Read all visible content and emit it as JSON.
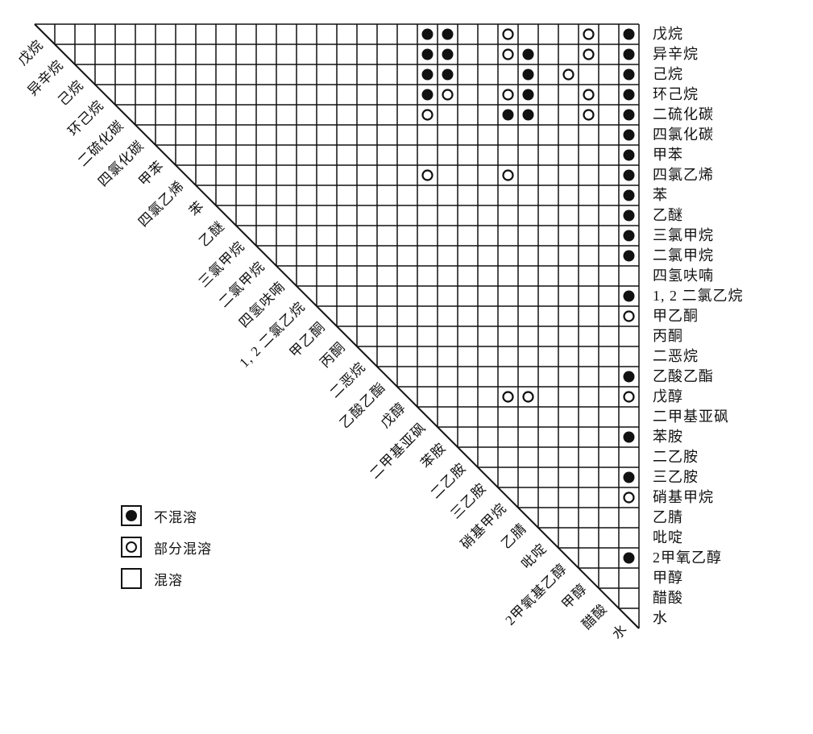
{
  "chart_data": {
    "type": "heatmap",
    "subtype": "triangular-miscibility-matrix",
    "solvents": [
      "戊烷",
      "异辛烷",
      "己烷",
      "环己烷",
      "二硫化碳",
      "四氯化碳",
      "甲苯",
      "四氯乙烯",
      "苯",
      "乙醚",
      "三氯甲烷",
      "二氯甲烷",
      "四氢呋喃",
      "1, 2 二氯乙烷",
      "甲乙酮",
      "丙酮",
      "二恶烷",
      "乙酸乙酯",
      "戊醇",
      "二甲基亚砜",
      "苯胺",
      "二乙胺",
      "三乙胺",
      "硝基甲烷",
      "乙腈",
      "吡啶",
      "2甲氧乙醇",
      "甲醇",
      "醋酸",
      "水"
    ],
    "column_labels": [
      "戊烷",
      "异辛烷",
      "己烷",
      "环己烷",
      "二硫化碳",
      "四氯化碳",
      "甲苯",
      "四氯乙烯",
      "苯",
      "乙醚",
      "三氯甲烷",
      "二氯甲烷",
      "四氢呋喃",
      "1, 2 二氯乙烷",
      "甲乙酮",
      "丙酮",
      "二恶烷",
      "乙酸乙酯",
      "戊醇",
      "二甲基亚砜",
      "苯胺",
      "二乙胺",
      "三乙胺",
      "硝基甲烷",
      "乙腈",
      "吡啶",
      "2甲氧基乙醇",
      "甲醇",
      "醋酸",
      "水"
    ],
    "legend": [
      {
        "symbol": "filled-circle",
        "label": "不混溶"
      },
      {
        "symbol": "open-circle",
        "label": "部分混溶"
      },
      {
        "symbol": "empty-cell",
        "label": "混溶"
      }
    ],
    "marks": [
      {
        "row": 1,
        "col": 20,
        "type": "immiscible"
      },
      {
        "row": 1,
        "col": 21,
        "type": "immiscible"
      },
      {
        "row": 1,
        "col": 24,
        "type": "partial"
      },
      {
        "row": 1,
        "col": 28,
        "type": "partial"
      },
      {
        "row": 1,
        "col": 30,
        "type": "immiscible"
      },
      {
        "row": 2,
        "col": 20,
        "type": "immiscible"
      },
      {
        "row": 2,
        "col": 21,
        "type": "immiscible"
      },
      {
        "row": 2,
        "col": 24,
        "type": "partial"
      },
      {
        "row": 2,
        "col": 25,
        "type": "immiscible"
      },
      {
        "row": 2,
        "col": 28,
        "type": "partial"
      },
      {
        "row": 2,
        "col": 30,
        "type": "immiscible"
      },
      {
        "row": 3,
        "col": 20,
        "type": "immiscible"
      },
      {
        "row": 3,
        "col": 21,
        "type": "immiscible"
      },
      {
        "row": 3,
        "col": 25,
        "type": "immiscible"
      },
      {
        "row": 3,
        "col": 27,
        "type": "partial"
      },
      {
        "row": 3,
        "col": 30,
        "type": "immiscible"
      },
      {
        "row": 4,
        "col": 20,
        "type": "immiscible"
      },
      {
        "row": 4,
        "col": 21,
        "type": "partial"
      },
      {
        "row": 4,
        "col": 24,
        "type": "partial"
      },
      {
        "row": 4,
        "col": 25,
        "type": "immiscible"
      },
      {
        "row": 4,
        "col": 28,
        "type": "partial"
      },
      {
        "row": 4,
        "col": 30,
        "type": "immiscible"
      },
      {
        "row": 5,
        "col": 20,
        "type": "partial"
      },
      {
        "row": 5,
        "col": 24,
        "type": "immiscible"
      },
      {
        "row": 5,
        "col": 25,
        "type": "immiscible"
      },
      {
        "row": 5,
        "col": 28,
        "type": "partial"
      },
      {
        "row": 5,
        "col": 30,
        "type": "immiscible"
      },
      {
        "row": 6,
        "col": 30,
        "type": "immiscible"
      },
      {
        "row": 7,
        "col": 30,
        "type": "immiscible"
      },
      {
        "row": 8,
        "col": 20,
        "type": "partial"
      },
      {
        "row": 8,
        "col": 24,
        "type": "partial"
      },
      {
        "row": 8,
        "col": 30,
        "type": "immiscible"
      },
      {
        "row": 9,
        "col": 30,
        "type": "immiscible"
      },
      {
        "row": 10,
        "col": 30,
        "type": "immiscible"
      },
      {
        "row": 11,
        "col": 30,
        "type": "immiscible"
      },
      {
        "row": 12,
        "col": 30,
        "type": "immiscible"
      },
      {
        "row": 14,
        "col": 30,
        "type": "immiscible"
      },
      {
        "row": 15,
        "col": 30,
        "type": "partial"
      },
      {
        "row": 18,
        "col": 30,
        "type": "immiscible"
      },
      {
        "row": 19,
        "col": 24,
        "type": "partial"
      },
      {
        "row": 19,
        "col": 25,
        "type": "partial"
      },
      {
        "row": 19,
        "col": 30,
        "type": "partial"
      },
      {
        "row": 21,
        "col": 30,
        "type": "immiscible"
      },
      {
        "row": 23,
        "col": 30,
        "type": "immiscible"
      },
      {
        "row": 24,
        "col": 30,
        "type": "partial"
      },
      {
        "row": 27,
        "col": 30,
        "type": "immiscible"
      }
    ],
    "colors": {
      "ink": "#111111",
      "background": "#ffffff"
    }
  }
}
